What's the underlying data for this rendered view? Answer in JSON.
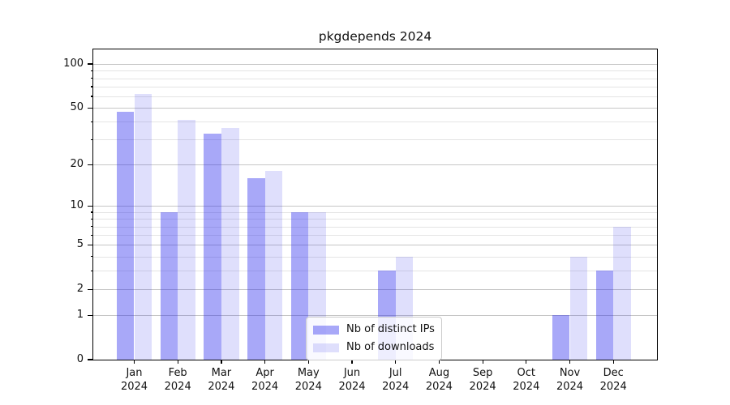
{
  "chart_data": {
    "type": "bar",
    "title": "pkgdepends 2024",
    "categories": [
      "Jan 2024",
      "Feb 2024",
      "Mar 2024",
      "Apr 2024",
      "May 2024",
      "Jun 2024",
      "Jul 2024",
      "Aug 2024",
      "Sep 2024",
      "Oct 2024",
      "Nov 2024",
      "Dec 2024"
    ],
    "series": [
      {
        "name": "Nb of distinct IPs",
        "base_color": "#2626ee",
        "alpha": 0.4,
        "fill": "rgba(38,38,238,0.40)",
        "values": [
          47,
          9,
          33,
          16,
          9,
          0,
          3,
          0,
          0,
          0,
          1,
          3
        ]
      },
      {
        "name": "Nb of downloads",
        "base_color": "#2626ee",
        "alpha": 0.15,
        "fill": "rgba(38,38,238,0.15)",
        "values": [
          62,
          41,
          36,
          18,
          9,
          0,
          4,
          0,
          0,
          0,
          4,
          7
        ]
      }
    ],
    "xlabel": "",
    "ylabel": "",
    "y_axis": {
      "scale": "log10(1+x)",
      "ticks": [
        0,
        1,
        2,
        5,
        10,
        20,
        50,
        100
      ],
      "minor_gridlines": [
        3,
        4,
        6,
        7,
        8,
        9,
        30,
        40,
        60,
        70,
        80,
        90
      ],
      "range_top": 126
    },
    "grid": true,
    "grid_major_color": "#c6c6c6",
    "grid_minor_color": "#e4e4e4",
    "legend_position": "lower center"
  }
}
